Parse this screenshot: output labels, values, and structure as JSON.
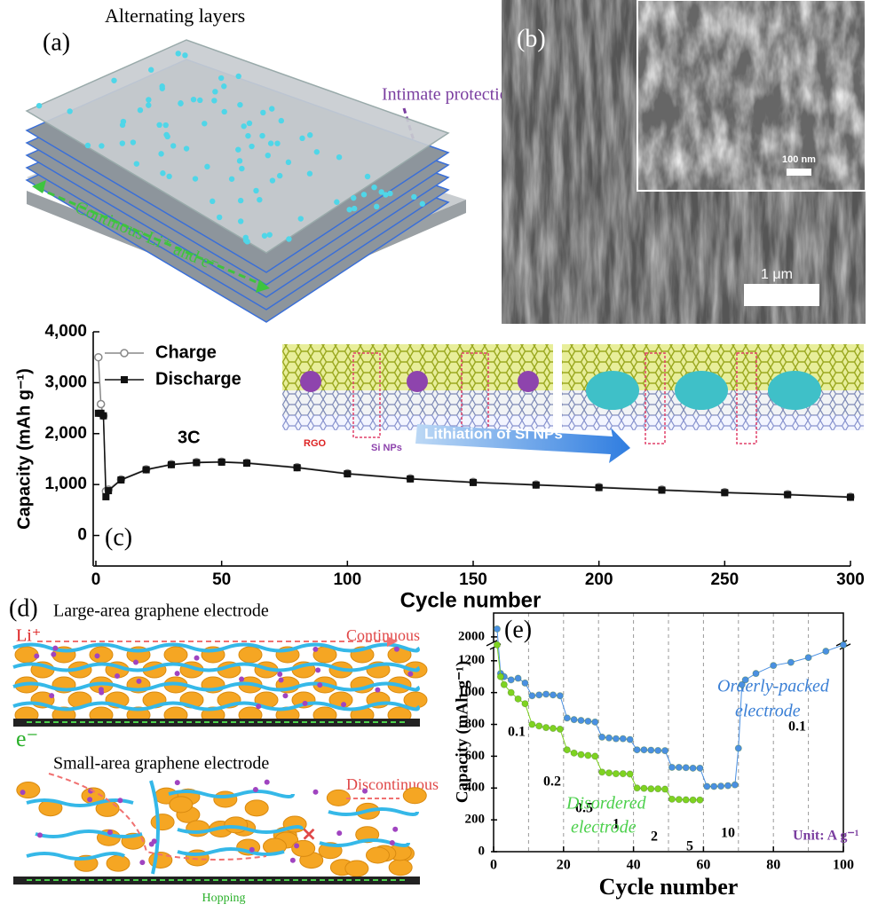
{
  "panel_a": {
    "label": "(a)",
    "title": "Alternating layers",
    "annotations": [
      "Intimate protection",
      "Continous Li⁺ and e⁻"
    ]
  },
  "panel_b": {
    "label": "(b)",
    "scale_bars": [
      "100 nm",
      "1 μm"
    ]
  },
  "panel_d": {
    "label": "(d)",
    "top_title": "Large-area graphene electrode",
    "ion": "Li⁺",
    "top_note": "Continuous",
    "electron": "e⁻",
    "bottom_title": "Small-area graphene electrode",
    "bottom_note": "Discontinuous",
    "hopping": "Hopping"
  },
  "chart_data": [
    {
      "type": "line",
      "label": "(c)",
      "xlabel": "Cycle number",
      "ylabel": "Capacity (mAh g⁻¹)",
      "annotations": [
        "3C"
      ],
      "inset_labels": [
        "RGO",
        "Si NPs",
        "Lithiation of Si NPs"
      ],
      "xlim": [
        0,
        300
      ],
      "xticks": [
        0,
        50,
        100,
        150,
        200,
        250,
        300
      ],
      "ylim": [
        -600,
        4000
      ],
      "yticks": [
        {
          "value": 4000,
          "label": "4,000"
        },
        {
          "value": 3000,
          "label": "3,000"
        },
        {
          "value": 2000,
          "label": "2,000"
        },
        {
          "value": 1000,
          "label": "1,000"
        },
        0
      ],
      "series": [
        {
          "name": "Charge",
          "color": "#888888",
          "marker": "open-circle",
          "x": [
            1,
            2,
            3,
            4,
            5,
            10,
            20,
            30,
            40,
            50,
            60,
            80,
            100,
            125,
            150,
            175,
            200,
            225,
            250,
            275,
            300
          ],
          "values": [
            3500,
            2580,
            2350,
            870,
            900,
            1100,
            1300,
            1400,
            1440,
            1450,
            1430,
            1340,
            1220,
            1120,
            1050,
            1000,
            950,
            900,
            850,
            810,
            760
          ]
        },
        {
          "name": "Discharge",
          "color": "#111111",
          "marker": "filled-square",
          "x": [
            1,
            2,
            3,
            4,
            5,
            10,
            20,
            30,
            40,
            50,
            60,
            80,
            100,
            125,
            150,
            175,
            200,
            225,
            250,
            275,
            300
          ],
          "values": [
            2400,
            2400,
            2350,
            760,
            880,
            1090,
            1290,
            1390,
            1430,
            1440,
            1420,
            1330,
            1210,
            1110,
            1040,
            990,
            940,
            890,
            840,
            800,
            750
          ]
        }
      ]
    },
    {
      "type": "line",
      "label": "(e)",
      "xlabel": "Cycle number",
      "ylabel": "Capacity (mAh g⁻¹)",
      "grid": "dashed",
      "y_break": [
        1300,
        1950
      ],
      "annotations": [
        "0.1",
        "0.2",
        "0.5",
        "1",
        "2",
        "5",
        "10",
        "0.1",
        "Orderly-packed",
        "electrode",
        "Disordered",
        "electrode",
        "Unit: A g⁻¹"
      ],
      "xlim": [
        0,
        100
      ],
      "xticks": [
        0,
        20,
        40,
        60,
        80,
        100
      ],
      "ylim": [
        0,
        2150
      ],
      "yticks": [
        0,
        200,
        400,
        600,
        800,
        1000,
        1200,
        2000
      ],
      "series": [
        {
          "name": "Orderly-packed electrode",
          "color": "#4a90e2",
          "x": [
            1,
            2,
            3,
            5,
            7,
            9,
            11,
            13,
            15,
            17,
            19,
            21,
            23,
            25,
            27,
            29,
            31,
            33,
            35,
            37,
            39,
            41,
            43,
            45,
            47,
            49,
            51,
            53,
            55,
            57,
            59,
            61,
            63,
            65,
            67,
            69,
            70,
            71,
            72,
            75,
            80,
            85,
            90,
            95,
            100
          ],
          "values": [
            2050,
            1120,
            1100,
            1080,
            1090,
            1060,
            980,
            985,
            990,
            985,
            980,
            840,
            830,
            825,
            820,
            815,
            720,
            715,
            710,
            710,
            705,
            640,
            640,
            638,
            636,
            635,
            530,
            530,
            528,
            525,
            525,
            410,
            410,
            412,
            415,
            420,
            650,
            1050,
            1080,
            1120,
            1170,
            1190,
            1220,
            1260,
            1300
          ]
        },
        {
          "name": "Disordered electrode",
          "color": "#7ed321",
          "x": [
            1,
            2,
            3,
            5,
            7,
            9,
            11,
            13,
            15,
            17,
            19,
            21,
            23,
            25,
            27,
            29,
            31,
            33,
            35,
            37,
            39,
            41,
            43,
            45,
            47,
            49,
            51,
            53,
            55,
            57,
            59
          ],
          "values": [
            1950,
            1100,
            1050,
            1000,
            960,
            930,
            800,
            790,
            780,
            775,
            770,
            640,
            620,
            610,
            605,
            600,
            500,
            495,
            490,
            490,
            488,
            400,
            398,
            395,
            395,
            393,
            330,
            328,
            326,
            325,
            325
          ]
        }
      ]
    }
  ]
}
